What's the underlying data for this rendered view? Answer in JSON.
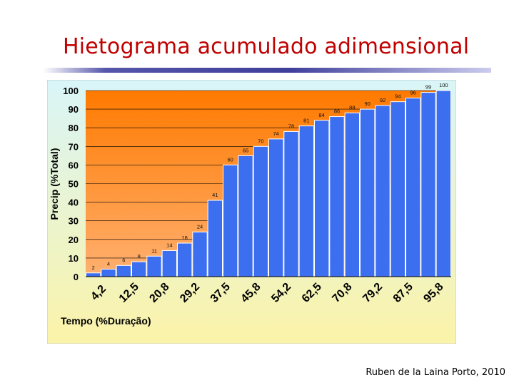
{
  "slide": {
    "title": "Hietograma acumulado adimensional",
    "credit": "Ruben de la Laina Porto, 2010"
  },
  "colors": {
    "title": "#c00000",
    "bar": "#3c6ef0",
    "plot_top": "#ff7a00",
    "plot_bottom": "#ffb070",
    "panel_top": "#d9f5f8",
    "panel_bottom": "#fbf3a8"
  },
  "chart_data": {
    "type": "bar",
    "xlabel": "Tempo (%Duração)",
    "ylabel": "Precip (%Total)",
    "ylim": [
      0,
      100
    ],
    "y_ticks": [
      "0",
      "10",
      "20",
      "30",
      "40",
      "50",
      "60",
      "70",
      "80",
      "90",
      "100"
    ],
    "x_tick_labels": [
      "4,2",
      "12,5",
      "20,8",
      "29,2",
      "37,5",
      "45,8",
      "54,2",
      "62,5",
      "70,8",
      "79,2",
      "87,5",
      "95,8"
    ],
    "values": [
      2,
      4,
      6,
      8,
      11,
      14,
      18,
      24,
      41,
      60,
      65,
      70,
      74,
      78,
      81,
      84,
      86,
      88,
      90,
      92,
      94,
      96,
      99,
      100
    ],
    "value_labels": [
      "2",
      "4",
      "6",
      "8",
      "11",
      "14",
      "18",
      "24",
      "41",
      "60",
      "65",
      "70",
      "74",
      "78",
      "81",
      "84",
      "86",
      "88",
      "90",
      "92",
      "94",
      "96",
      "99",
      "100"
    ]
  }
}
